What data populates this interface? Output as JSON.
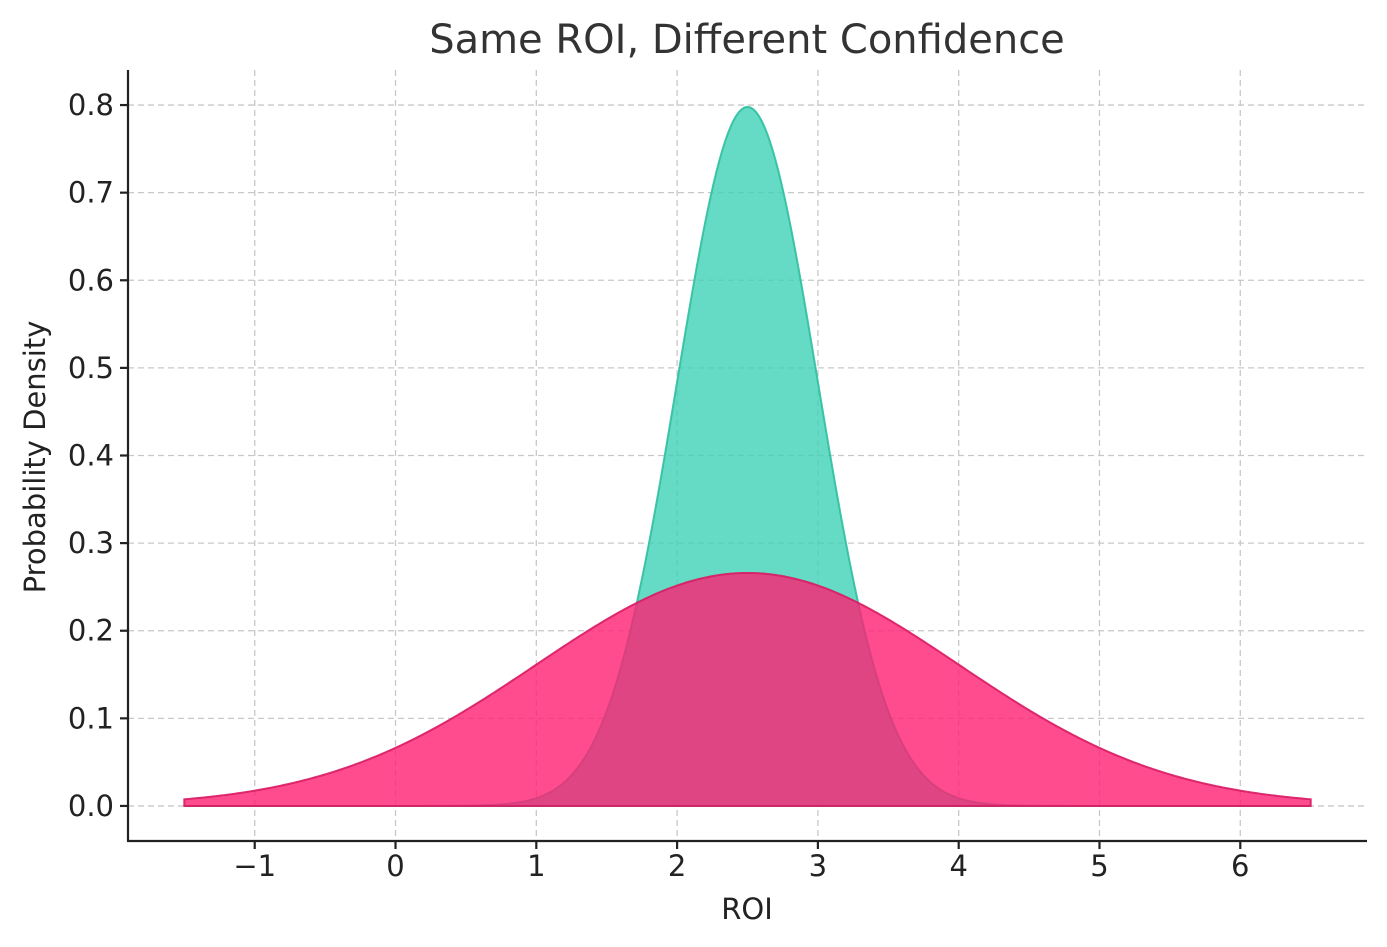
{
  "chart_data": {
    "type": "area",
    "title": "Same ROI, Different Confidence",
    "xlabel": "ROI",
    "ylabel": "Probability Density",
    "xlim": [
      -1.9,
      6.9
    ],
    "ylim": [
      -0.04,
      0.84
    ],
    "xticks": [
      -1,
      0,
      1,
      2,
      3,
      4,
      5,
      6
    ],
    "xtick_labels": [
      "−1",
      "0",
      "1",
      "2",
      "3",
      "4",
      "5",
      "6"
    ],
    "yticks": [
      0.0,
      0.1,
      0.2,
      0.3,
      0.4,
      0.5,
      0.6,
      0.7,
      0.8
    ],
    "ytick_labels": [
      "0.0",
      "0.1",
      "0.2",
      "0.3",
      "0.4",
      "0.5",
      "0.6",
      "0.7",
      "0.8"
    ],
    "grid": true,
    "legend": "none",
    "series": [
      {
        "distribution": "normal",
        "mean": 2.5,
        "std": 0.5,
        "peak_density": 0.798,
        "x_range": [
          -1.5,
          6.5
        ],
        "fill_color": "#3fd1b5",
        "edge_color": "#2fbfa0",
        "opacity": 0.8
      },
      {
        "distribution": "normal",
        "mean": 2.5,
        "std": 1.5,
        "peak_density": 0.266,
        "x_range": [
          -1.5,
          6.5
        ],
        "fill_color": "#ff1f73",
        "edge_color": "#d81b63",
        "opacity": 0.8
      }
    ]
  }
}
